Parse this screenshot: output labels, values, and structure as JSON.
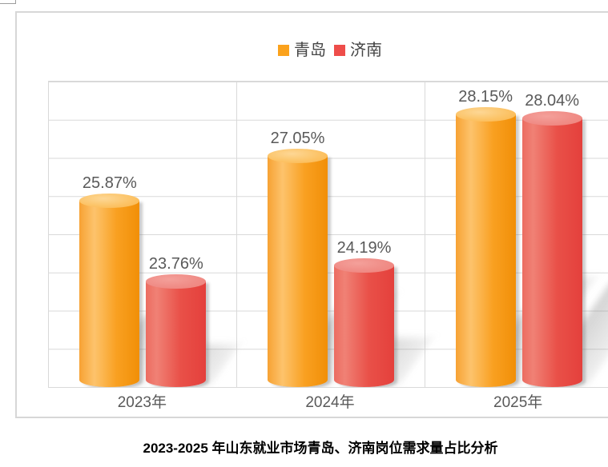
{
  "caption": "2023-2025 年山东就业市场青岛、济南岗位需求量占比分析",
  "legend": {
    "items": [
      {
        "label": "青岛",
        "color": "#fba21c"
      },
      {
        "label": "济南",
        "color": "#ee4d4a"
      }
    ]
  },
  "chart_data": {
    "type": "bar",
    "subtype": "3d-cylinder",
    "title": "2023-2025 年山东就业市场青岛、济南岗位需求量占比分析",
    "categories": [
      "2023年",
      "2024年",
      "2025年"
    ],
    "series": [
      {
        "key": "qingdao",
        "name": "青岛",
        "color": "#fba21c",
        "values": [
          25.87,
          27.05,
          28.15
        ]
      },
      {
        "key": "jinan",
        "name": "济南",
        "color": "#ee4d4a",
        "values": [
          23.76,
          24.19,
          28.04
        ]
      }
    ],
    "data_labels": [
      [
        "25.87%",
        "27.05%",
        "28.15%"
      ],
      [
        "23.76%",
        "24.19%",
        "28.04%"
      ]
    ],
    "xlabel": "",
    "ylabel": "",
    "ylim": [
      21,
      29
    ],
    "grid_step_percent": 1,
    "grid": true,
    "y_tick_labels_visible": false,
    "legend_position": "top",
    "unit": "%"
  },
  "colors": {
    "frame_border": "#d7d7d7",
    "gridline": "#d9d9d9",
    "label_text": "#595959",
    "legend_text": "#444444",
    "caption_text": "#000000"
  }
}
